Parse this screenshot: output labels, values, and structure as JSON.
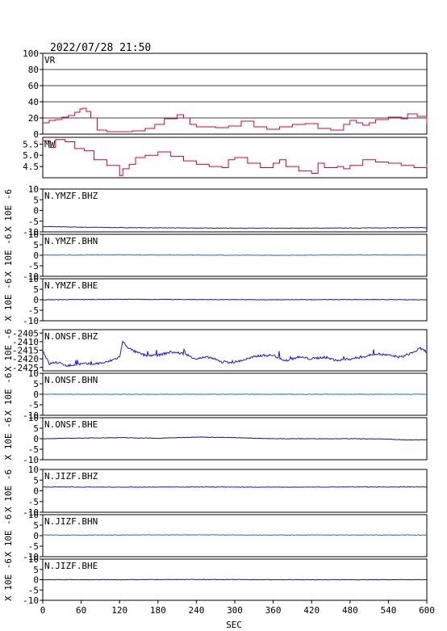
{
  "header": {
    "timestamp": "2022/07/28 21:50"
  },
  "chart_data": {
    "type": "line",
    "xlabel": "SEC",
    "xlim": [
      0,
      600
    ],
    "xticks": [
      0,
      60,
      120,
      180,
      240,
      300,
      360,
      420,
      480,
      540,
      600
    ],
    "panels": [
      {
        "label": "VR",
        "ylabel": "",
        "ylim": [
          0,
          100
        ],
        "yticks": [
          0,
          20,
          40,
          60,
          80,
          100
        ],
        "yticklabels": [
          "0",
          "20",
          "40",
          "60",
          "80",
          "100"
        ],
        "grid": true,
        "color": "#d8003c",
        "style": "step",
        "x": [
          0,
          10,
          20,
          30,
          40,
          50,
          58,
          62,
          68,
          75,
          85,
          100,
          120,
          140,
          160,
          175,
          190,
          210,
          220,
          230,
          240,
          255,
          270,
          290,
          310,
          330,
          350,
          370,
          390,
          410,
          430,
          450,
          470,
          480,
          490,
          500,
          510,
          520,
          540,
          560,
          570,
          585,
          600
        ],
        "y": [
          14,
          17,
          18,
          21,
          23,
          27,
          31,
          32,
          28,
          20,
          5,
          3,
          3,
          4,
          7,
          12,
          19,
          24,
          20,
          12,
          9,
          9,
          8,
          10,
          16,
          9,
          6,
          9,
          12,
          13,
          7,
          5,
          12,
          17,
          14,
          11,
          14,
          18,
          21,
          19,
          25,
          22,
          13
        ]
      },
      {
        "label": "MW",
        "ylabel": "",
        "ylim": [
          4.0,
          5.8
        ],
        "yticks": [
          4.5,
          5.0,
          5.5
        ],
        "yticklabels": [
          "4.5",
          "5.0",
          "5.5"
        ],
        "grid": false,
        "color": "#d8003c",
        "style": "step",
        "x": [
          0,
          10,
          20,
          35,
          50,
          65,
          80,
          100,
          120,
          125,
          135,
          145,
          160,
          180,
          200,
          220,
          240,
          260,
          280,
          290,
          300,
          320,
          340,
          360,
          370,
          380,
          400,
          420,
          430,
          440,
          460,
          470,
          480,
          500,
          520,
          540,
          560,
          580,
          600
        ],
        "y": [
          5.65,
          5.35,
          5.7,
          5.6,
          5.3,
          5.2,
          4.8,
          4.55,
          4.1,
          4.4,
          4.6,
          4.9,
          5.0,
          5.15,
          4.95,
          4.75,
          4.6,
          4.5,
          4.45,
          4.8,
          4.9,
          4.65,
          4.45,
          4.65,
          4.8,
          4.5,
          4.3,
          4.2,
          4.65,
          4.45,
          4.5,
          4.4,
          4.55,
          4.8,
          4.7,
          4.65,
          4.55,
          4.45,
          4.6
        ]
      },
      {
        "label": "N.YMZF.BHZ",
        "ylabel": "X 10E -6",
        "ylim": [
          -10,
          10
        ],
        "yticks": [
          -10,
          -5,
          0,
          5,
          10
        ],
        "yticklabels": [
          "-10",
          "-5",
          "0",
          "5",
          "10"
        ],
        "grid": false,
        "color": "#1a1ab8",
        "x": [
          0,
          60,
          120,
          240,
          360,
          480,
          600
        ],
        "y": [
          -7.5,
          -7.8,
          -8.0,
          -8.2,
          -8.3,
          -8.2,
          -8.0
        ]
      },
      {
        "label": "N.YMZF.BHN",
        "ylabel": "X 10E -6",
        "ylim": [
          -10,
          10
        ],
        "yticks": [
          -10,
          -5,
          0,
          5,
          10
        ],
        "yticklabels": [
          "-10",
          "-5",
          "0",
          "5",
          "10"
        ],
        "grid": false,
        "color": "#1e6ee6",
        "x": [
          0,
          120,
          240,
          360,
          480,
          600
        ],
        "y": [
          0.1,
          0.2,
          0.1,
          0.0,
          0.2,
          0.1
        ]
      },
      {
        "label": "N.YMZF.BHE",
        "ylabel": "X 10E -6",
        "ylim": [
          -10,
          10
        ],
        "yticks": [
          -10,
          -5,
          0,
          5,
          10
        ],
        "yticklabels": [
          "-10",
          "-5",
          "0",
          "5",
          "10"
        ],
        "grid": false,
        "color": "#141496",
        "x": [
          0,
          120,
          240,
          360,
          480,
          600
        ],
        "y": [
          0.0,
          0.2,
          0.1,
          0.0,
          0.1,
          0.0
        ]
      },
      {
        "label": "N.ONSF.BHZ",
        "ylabel": "X 10E -6",
        "ylim": [
          -2427,
          -2403
        ],
        "yticks": [
          -2425,
          -2420,
          -2415,
          -2410,
          -2405
        ],
        "yticklabels": [
          "-2425",
          "-2420",
          "-2415",
          "-2410",
          "-2405"
        ],
        "grid": false,
        "color": "#1a1ae0",
        "style": "noisy",
        "x": [
          0,
          10,
          20,
          40,
          60,
          80,
          100,
          120,
          125,
          135,
          145,
          160,
          180,
          200,
          220,
          240,
          260,
          280,
          300,
          320,
          340,
          360,
          380,
          400,
          420,
          440,
          460,
          480,
          500,
          520,
          540,
          560,
          580,
          590,
          600
        ],
        "y": [
          -2415,
          -2423,
          -2422,
          -2424,
          -2423,
          -2423,
          -2422,
          -2419,
          -2410,
          -2414,
          -2416,
          -2418,
          -2418,
          -2416,
          -2417,
          -2420,
          -2419,
          -2422,
          -2422,
          -2420,
          -2418,
          -2418,
          -2421,
          -2419,
          -2420,
          -2419,
          -2421,
          -2420,
          -2419,
          -2417,
          -2418,
          -2419,
          -2416,
          -2414,
          -2416
        ]
      },
      {
        "label": "N.ONSF.BHN",
        "ylabel": "X 10E -6",
        "ylim": [
          -10,
          10
        ],
        "yticks": [
          -10,
          -5,
          0,
          5,
          10
        ],
        "yticklabels": [
          "-10",
          "-5",
          "0",
          "5",
          "10"
        ],
        "grid": false,
        "color": "#1e6ee6",
        "x": [
          0,
          120,
          240,
          360,
          480,
          600
        ],
        "y": [
          0.0,
          0.0,
          0.0,
          0.0,
          0.0,
          0.0
        ]
      },
      {
        "label": "N.ONSF.BHE",
        "ylabel": "X 10E -6",
        "ylim": [
          -10,
          10
        ],
        "yticks": [
          -10,
          -5,
          0,
          5,
          10
        ],
        "yticklabels": [
          "-10",
          "-5",
          "0",
          "5",
          "10"
        ],
        "grid": false,
        "color": "#141496",
        "x": [
          0,
          60,
          120,
          180,
          240,
          300,
          360,
          420,
          480,
          540,
          570,
          600
        ],
        "y": [
          0.0,
          0.3,
          0.5,
          0.2,
          0.8,
          0.5,
          0.0,
          0.0,
          0.0,
          -0.2,
          -0.6,
          -0.5
        ]
      },
      {
        "label": "N.JIZF.BHZ",
        "ylabel": "X 10E -6",
        "ylim": [
          -10,
          10
        ],
        "yticks": [
          -10,
          -5,
          0,
          5,
          10
        ],
        "yticklabels": [
          "-10",
          "-5",
          "0",
          "5",
          "10"
        ],
        "grid": false,
        "color": "#1a1ab8",
        "x": [
          0,
          120,
          240,
          360,
          480,
          600
        ],
        "y": [
          1.8,
          1.7,
          1.8,
          1.7,
          1.8,
          1.8
        ]
      },
      {
        "label": "N.JIZF.BHN",
        "ylabel": "X 10E -6",
        "ylim": [
          -10,
          10
        ],
        "yticks": [
          -10,
          -5,
          0,
          5,
          10
        ],
        "yticklabels": [
          "-10",
          "-5",
          "0",
          "5",
          "10"
        ],
        "grid": false,
        "color": "#1e6ee6",
        "x": [
          0,
          120,
          240,
          360,
          480,
          600
        ],
        "y": [
          0.3,
          0.3,
          0.4,
          0.3,
          0.3,
          0.3
        ]
      },
      {
        "label": "N.JIZF.BHE",
        "ylabel": "X 10E -6",
        "ylim": [
          -10,
          10
        ],
        "yticks": [
          -10,
          -5,
          0,
          5,
          10
        ],
        "yticklabels": [
          "-10",
          "-5",
          "0",
          "5",
          "10"
        ],
        "grid": false,
        "color": "#141496",
        "x": [
          0,
          120,
          240,
          360,
          480,
          600
        ],
        "y": [
          0.0,
          0.0,
          0.1,
          0.0,
          0.0,
          0.0
        ]
      }
    ]
  }
}
